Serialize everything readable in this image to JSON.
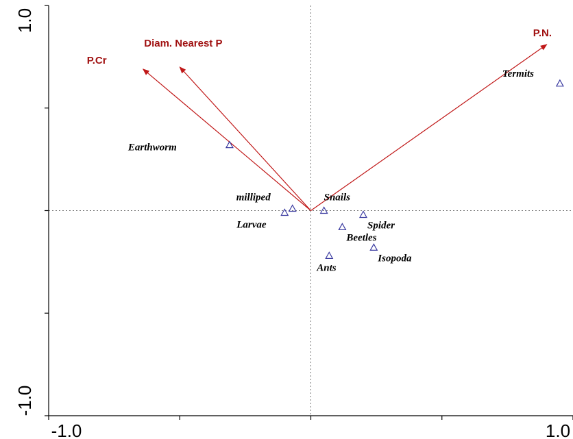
{
  "chart_data": {
    "type": "scatter",
    "title": "",
    "xlabel": "",
    "ylabel": "",
    "xlim": [
      -1.0,
      1.0
    ],
    "ylim": [
      -1.0,
      1.0
    ],
    "x_tick_labels": [
      "-1.0",
      "1.0"
    ],
    "y_tick_labels": [
      "-1.0",
      "1.0"
    ],
    "reference_lines": {
      "x": 0,
      "y": 0,
      "style": "dotted"
    },
    "vector_color": "#c01818",
    "point_color": "#3a3aa0",
    "vectors": [
      {
        "name": "P.Cr",
        "x": -0.64,
        "y": 0.69
      },
      {
        "name": "Diam. Nearest P",
        "x": -0.5,
        "y": 0.7
      },
      {
        "name": "P.N.",
        "x": 0.9,
        "y": 0.81
      }
    ],
    "points": [
      {
        "name": "Termits",
        "x": 0.95,
        "y": 0.62
      },
      {
        "name": "Earthworm",
        "x": -0.31,
        "y": 0.32
      },
      {
        "name": "milliped",
        "x": -0.07,
        "y": 0.01
      },
      {
        "name": "Larvae",
        "x": -0.1,
        "y": -0.01
      },
      {
        "name": "Snails",
        "x": 0.05,
        "y": 0.0
      },
      {
        "name": "Spider",
        "x": 0.2,
        "y": -0.02
      },
      {
        "name": "Beetles",
        "x": 0.12,
        "y": -0.08
      },
      {
        "name": "Isopoda",
        "x": 0.24,
        "y": -0.18
      },
      {
        "name": "Ants",
        "x": 0.07,
        "y": -0.22
      }
    ]
  }
}
